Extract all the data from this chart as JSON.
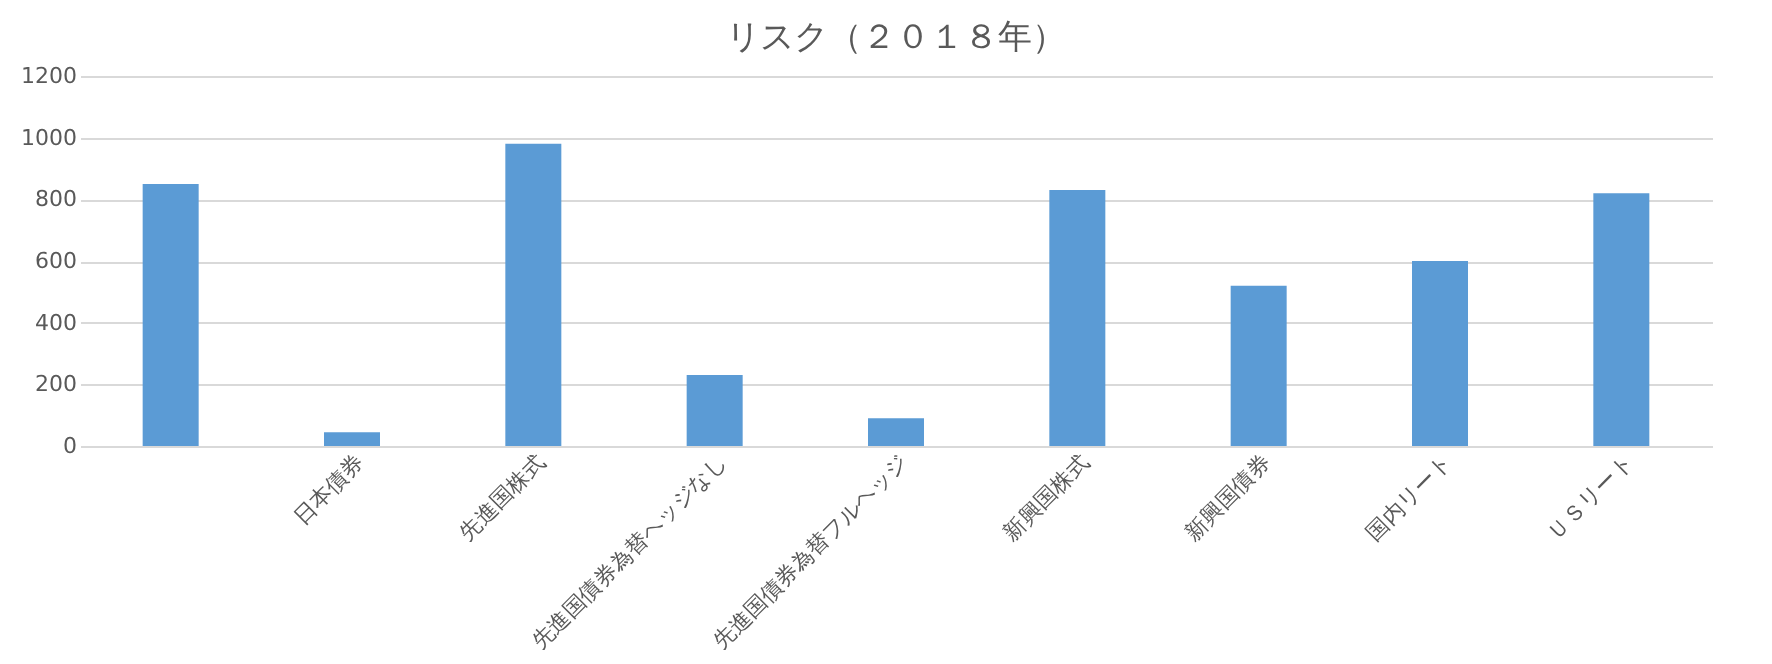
{
  "chart_data": {
    "type": "bar",
    "title": "リスク（２０１８年）",
    "categories": [
      null,
      "日本債券",
      "先進国株式",
      "先進国債券為替ヘッジなし",
      "先進国債券為替フルヘッジ",
      "新興国株式",
      "新興国債券",
      "国内リート",
      "ＵＳリート"
    ],
    "values": [
      850,
      45,
      980,
      230,
      90,
      830,
      520,
      600,
      820
    ],
    "color": "#5b9bd5",
    "ylim": [
      0,
      1200
    ],
    "yticks": [
      0,
      200,
      400,
      600,
      800,
      1000,
      1200
    ],
    "grid": "y"
  }
}
